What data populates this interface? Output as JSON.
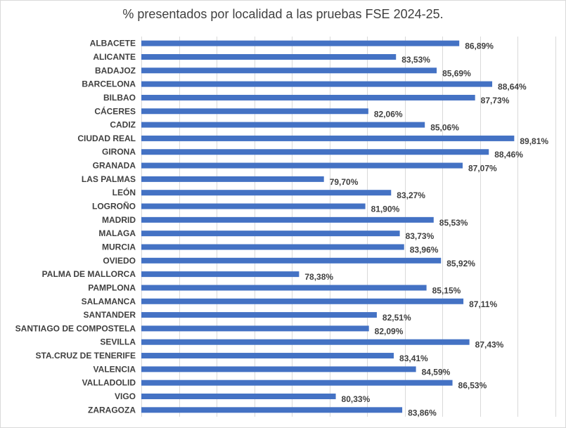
{
  "chart_data": {
    "type": "bar",
    "orientation": "horizontal",
    "title": "% presentados por localidad a las pruebas FSE 2024-25.",
    "xlabel": "",
    "ylabel": "",
    "value_suffix": "%",
    "decimal_separator": ",",
    "xlim": [
      70,
      92
    ],
    "grid": true,
    "legend": "none",
    "bar_color": "#4472c4",
    "categories": [
      "ALBACETE",
      "ALICANTE",
      "BADAJOZ",
      "BARCELONA",
      "BILBAO",
      "CÁCERES",
      "CADIZ",
      "CIUDAD REAL",
      "GIRONA",
      "GRANADA",
      "LAS PALMAS",
      "LEÓN",
      "LOGROÑO",
      "MADRID",
      "MALAGA",
      "MURCIA",
      "OVIEDO",
      "PALMA DE MALLORCA",
      "PAMPLONA",
      "SALAMANCA",
      "SANTANDER",
      "SANTIAGO DE COMPOSTELA",
      "SEVILLA",
      "STA.CRUZ DE TENERIFE",
      "VALENCIA",
      "VALLADOLID",
      "VIGO",
      "ZARAGOZA"
    ],
    "values": [
      86.89,
      83.53,
      85.69,
      88.64,
      87.73,
      82.06,
      85.06,
      89.81,
      88.46,
      87.07,
      79.7,
      83.27,
      81.9,
      85.53,
      83.73,
      83.96,
      85.92,
      78.38,
      85.15,
      87.11,
      82.51,
      82.09,
      87.43,
      83.41,
      84.59,
      86.53,
      80.33,
      83.86
    ],
    "data_labels": [
      "86,89%",
      "83,53%",
      "85,69%",
      "88,64%",
      "87,73%",
      "82,06%",
      "85,06%",
      "89,81%",
      "88,46%",
      "87,07%",
      "79,70%",
      "83,27%",
      "81,90%",
      "85,53%",
      "83,73%",
      "83,96%",
      "85,92%",
      "78,38%",
      "85,15%",
      "87,11%",
      "82,51%",
      "82,09%",
      "87,43%",
      "83,41%",
      "84,59%",
      "86,53%",
      "80,33%",
      "83,86%"
    ]
  }
}
